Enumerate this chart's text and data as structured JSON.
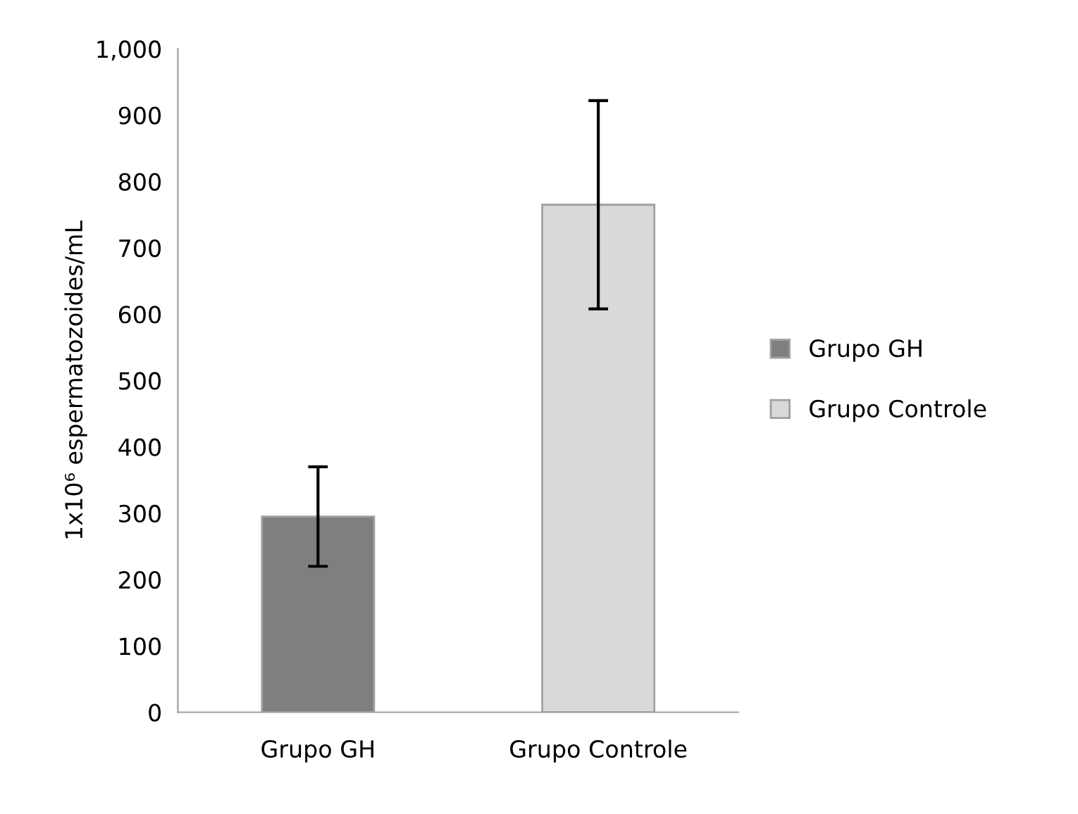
{
  "chart_data": {
    "type": "bar",
    "ylabel": "1x10⁶ espermatozoides/mL",
    "categories": [
      "Grupo GH",
      "Grupo Controle"
    ],
    "series": [
      {
        "name": "Grupo GH",
        "color": "#7f7f7f",
        "values": [
          295,
          null
        ],
        "errors": [
          75,
          null
        ]
      },
      {
        "name": "Grupo Controle",
        "color": "#d9d9d9",
        "values": [
          null,
          765
        ],
        "errors": [
          null,
          157
        ]
      }
    ],
    "ylim": [
      0,
      1000
    ],
    "yticks": [
      0,
      100,
      200,
      300,
      400,
      500,
      600,
      700,
      800,
      900,
      {
        "value": 1000,
        "label": "1,000"
      }
    ],
    "legend": "right",
    "grid": false
  }
}
